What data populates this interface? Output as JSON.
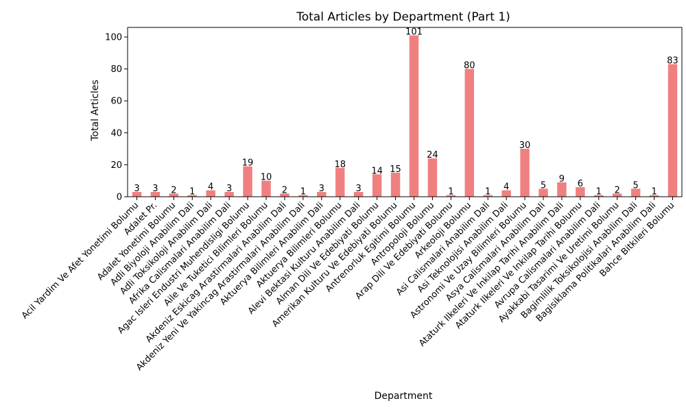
{
  "chart_data": {
    "type": "bar",
    "title": "Total Articles by Department (Part 1)",
    "xlabel": "Department",
    "ylabel": "Total Articles",
    "ylim": [
      0,
      106
    ],
    "yticks": [
      0,
      20,
      40,
      60,
      80,
      100
    ],
    "grid": false,
    "bar_color": "#f08080",
    "categories": [
      "Acil Yardim Ve Afet Yonetimi Bolumu",
      "Adalet Pr.",
      "Adalet Yonetimi Bolumu",
      "Adli Biyoloji Anabilim Dali",
      "Adli Toksikoloji Anabilim Dali",
      "Afrika Calismalari Anabilim Dali",
      "Agac Isleri Endustri Muhendisligi Bolumu",
      "Aile Ve Tuketici Bilimleri Bolumu",
      "Akdeniz Eskicag Arastirmalari Anabilim Dali",
      "Akdeniz Yeni Ve Yakincag Arastirmalari Anabilim Dali",
      "Aktuerya Bilimleri Anabilim Dali",
      "Aktuerya Bilimleri Bolumu",
      "Alevi Bektasi Kulturu Anabilim Dali",
      "Alman Dili Ve Edebiyati Bolumu",
      "Amerikan Kulturu Ve Edebiyati Bolumu",
      "Antrenorluk Egitimi Bolumu",
      "Antropoloji Bolumu",
      "Arap Dili Ve Edebiyati Bolumu",
      "Arkeoloji Bolumu",
      "Asi Calismalari Anabilim Dali",
      "Asi Teknolojisi Anabilim Dali",
      "Astronomi Ve Uzay Bilimleri Bolumu",
      "Asya Calismalari Anabilim Dali",
      "Ataturk Ilkeleri Ve Inkilap Tarihi Anabilim Dali",
      "Ataturk Ilkeleri Ve Inkilap Tarihi Bolumu",
      "Avrupa Calismalari Anabilim Dali",
      "Ayakkabi Tasarimi Ve Uretimi Bolumu",
      "Bagimlilik Toksikolojisi Anabilim Dali",
      "Bagisiklama Politikalari Anabilim Dali",
      "Bahce Bitkileri Bolumu"
    ],
    "values": [
      3,
      3,
      2,
      1,
      4,
      3,
      19,
      10,
      2,
      1,
      3,
      18,
      3,
      14,
      15,
      101,
      24,
      1,
      80,
      1,
      4,
      30,
      5,
      9,
      6,
      1,
      2,
      5,
      1,
      83
    ]
  }
}
